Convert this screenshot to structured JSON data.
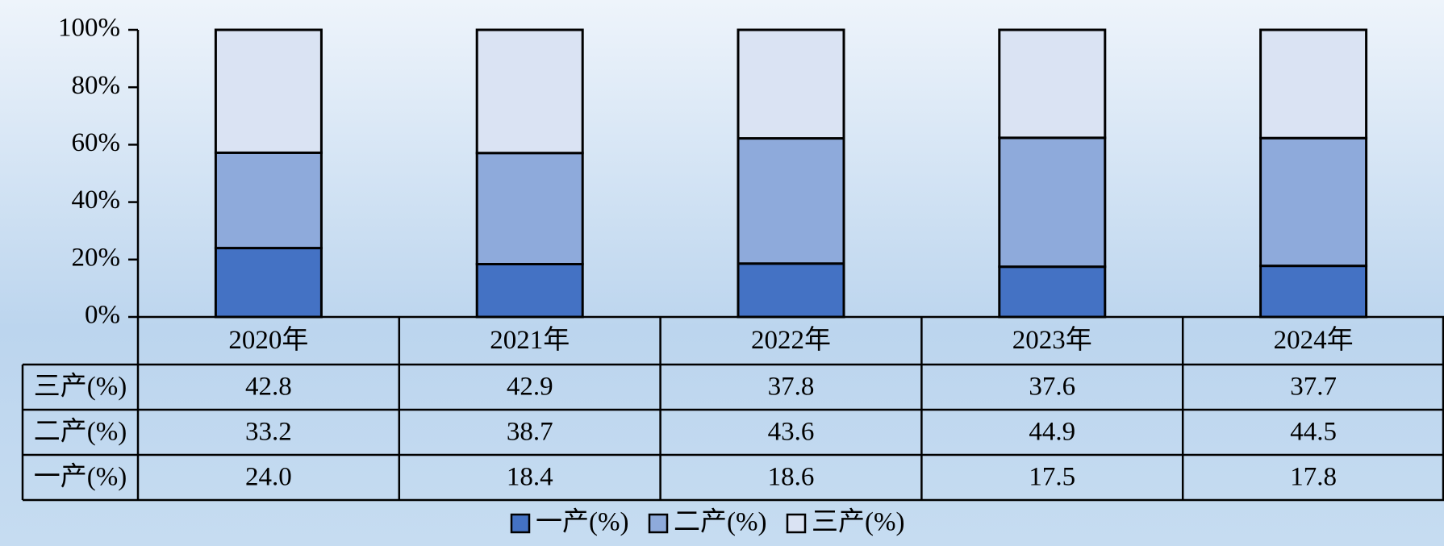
{
  "chart_data": {
    "type": "bar",
    "stacked": true,
    "categories": [
      "2020年",
      "2021年",
      "2022年",
      "2023年",
      "2024年"
    ],
    "series": [
      {
        "name": "一产(%)",
        "color": "#4472c4",
        "values": [
          24.0,
          18.4,
          18.6,
          17.5,
          17.8
        ],
        "value_labels": [
          "24.0",
          "18.4",
          "18.6",
          "17.5",
          "17.8"
        ]
      },
      {
        "name": "二产(%)",
        "color": "#8eaadb",
        "values": [
          33.2,
          38.7,
          43.6,
          44.9,
          44.5
        ],
        "value_labels": [
          "33.2",
          "38.7",
          "43.6",
          "44.9",
          "44.5"
        ]
      },
      {
        "name": "三产(%)",
        "color": "#dae3f3",
        "values": [
          42.8,
          42.9,
          37.8,
          37.6,
          37.7
        ],
        "value_labels": [
          "42.8",
          "42.9",
          "37.8",
          "37.6",
          "37.7"
        ]
      }
    ],
    "ylim": [
      0,
      100
    ],
    "yticks": [
      {
        "value": 0,
        "label": "0%"
      },
      {
        "value": 20,
        "label": "20%"
      },
      {
        "value": 40,
        "label": "40%"
      },
      {
        "value": 60,
        "label": "60%"
      },
      {
        "value": 80,
        "label": "80%"
      },
      {
        "value": 100,
        "label": "100%"
      }
    ],
    "grid": false,
    "legend": "bottom"
  }
}
